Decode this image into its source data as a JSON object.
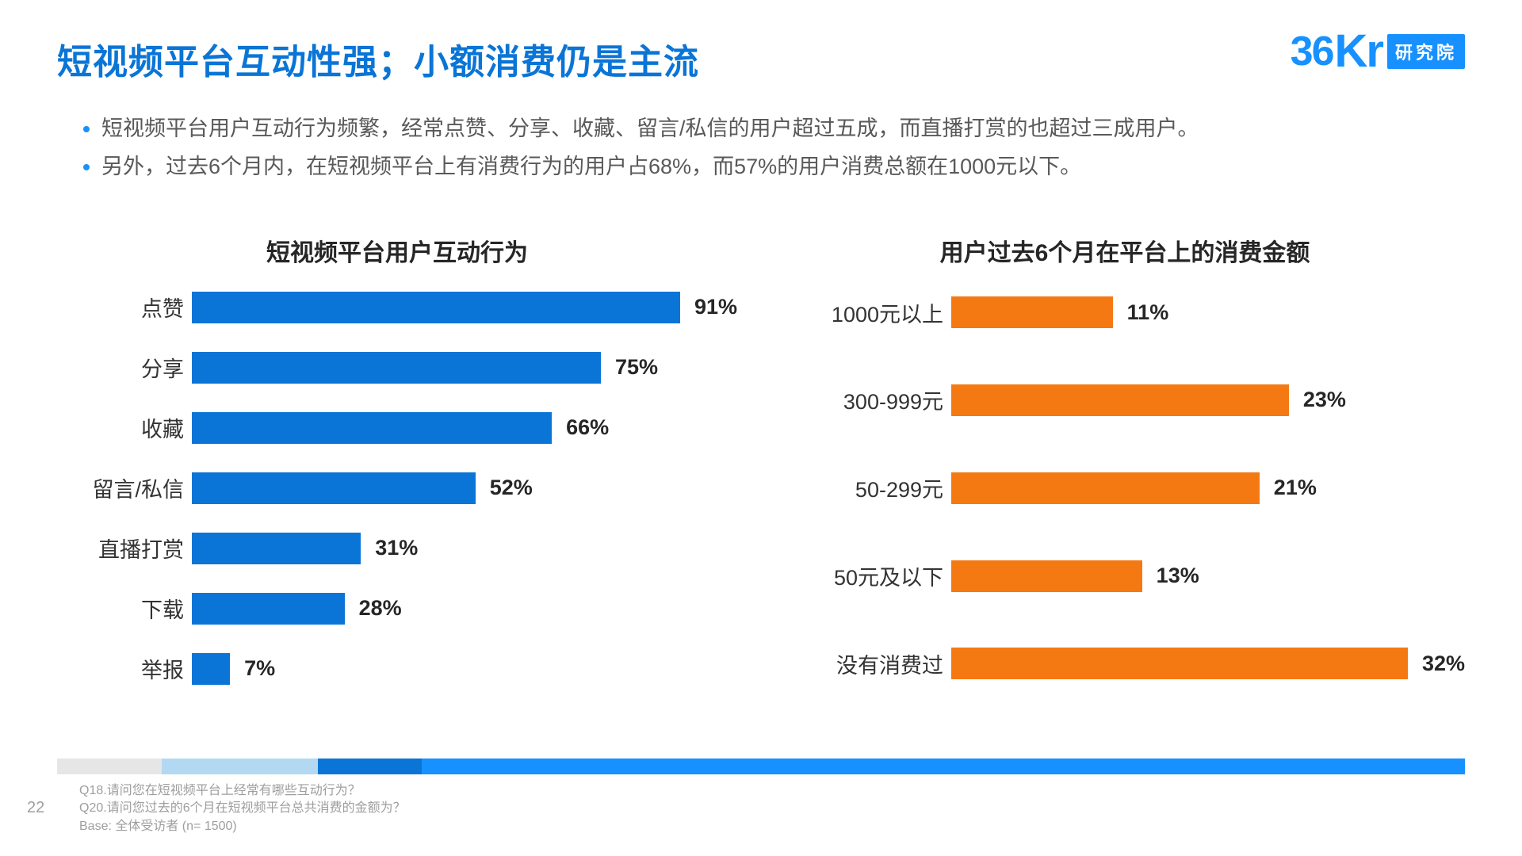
{
  "title": "短视频平台互动性强；小额消费仍是主流",
  "logo": {
    "num": "36",
    "kr": "Kr",
    "cn": "研究院"
  },
  "bullets": [
    "短视频平台用户互动行为频繁，经常点赞、分享、收藏、留言/私信的用户超过五成，而直播打赏的也超过三成用户。",
    "另外，过去6个月内，在短视频平台上有消费行为的用户占68%，而57%的用户消费总额在1000元以下。"
  ],
  "chart_left": {
    "type": "bar-horizontal",
    "title": "短视频平台用户互动行为",
    "color": "#0a75d6",
    "label_fontsize": 27,
    "value_fontsize": 27,
    "xlim": 100,
    "rows": [
      {
        "label": "点赞",
        "value": 91,
        "display": "91%"
      },
      {
        "label": "分享",
        "value": 75,
        "display": "75%"
      },
      {
        "label": "收藏",
        "value": 66,
        "display": "66%"
      },
      {
        "label": "留言/私信",
        "value": 52,
        "display": "52%"
      },
      {
        "label": "直播打赏",
        "value": 31,
        "display": "31%"
      },
      {
        "label": "下载",
        "value": 28,
        "display": "28%"
      },
      {
        "label": "举报",
        "value": 7,
        "display": "7%"
      }
    ]
  },
  "chart_right": {
    "type": "bar-horizontal",
    "title": "用户过去6个月在平台上的消费金额",
    "color": "#f57913",
    "label_fontsize": 27,
    "value_fontsize": 27,
    "xlim": 35,
    "rows": [
      {
        "label": "1000元以上",
        "value": 11,
        "display": "11%"
      },
      {
        "label": "300-999元",
        "value": 23,
        "display": "23%"
      },
      {
        "label": "50-299元",
        "value": 21,
        "display": "21%"
      },
      {
        "label": "50元及以下",
        "value": 13,
        "display": "13%"
      },
      {
        "label": "没有消费过",
        "value": 32,
        "display": "32%"
      }
    ]
  },
  "footer_band": {
    "segments": [
      {
        "color": "#e6e6e6",
        "flex": 2
      },
      {
        "color": "#b3d9f2",
        "flex": 3
      },
      {
        "color": "#0a75d6",
        "flex": 2
      },
      {
        "color": "#1791ff",
        "flex": 20
      }
    ]
  },
  "footnotes": {
    "q18": "Q18.请问您在短视频平台上经常有哪些互动行为？",
    "q20": "Q20.请问您过去的6个月在短视频平台总共消费的金额为？",
    "base": "Base: 全体受访者 (n= 1500)"
  },
  "page_number": "22"
}
